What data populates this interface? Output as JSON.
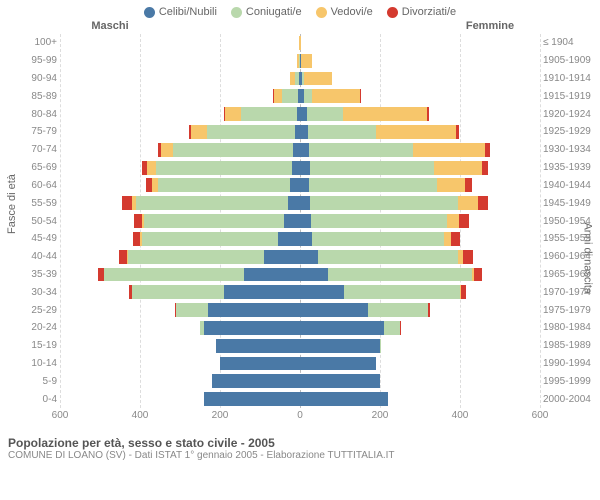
{
  "legend": [
    {
      "label": "Celibi/Nubili",
      "color": "#4a79a6"
    },
    {
      "label": "Coniugati/e",
      "color": "#b9d8ac"
    },
    {
      "label": "Vedovi/e",
      "color": "#f7c66b"
    },
    {
      "label": "Divorziati/e",
      "color": "#d43a2f"
    }
  ],
  "headers": {
    "left": "Maschi",
    "right": "Femmine"
  },
  "axis": {
    "left_title": "Fasce di età",
    "right_title": "Anni di nascita"
  },
  "x": {
    "max": 600,
    "ticks": [
      600,
      400,
      200,
      0,
      200,
      400,
      600
    ]
  },
  "colors": {
    "celibi": "#4a79a6",
    "coniugati": "#b9d8ac",
    "vedovi": "#f7c66b",
    "divorziati": "#d43a2f",
    "grid": "#dddddd",
    "center": "#bbbbbb",
    "bg": "#ffffff"
  },
  "footer": {
    "title": "Popolazione per età, sesso e stato civile - 2005",
    "subtitle": "COMUNE DI LOANO (SV) - Dati ISTAT 1° gennaio 2005 - Elaborazione TUTTITALIA.IT"
  },
  "rows": [
    {
      "age": "100+",
      "birth": "≤ 1904",
      "m": {
        "c": 0,
        "co": 0,
        "v": 2,
        "d": 0
      },
      "f": {
        "c": 0,
        "co": 0,
        "v": 3,
        "d": 0
      }
    },
    {
      "age": "95-99",
      "birth": "1905-1909",
      "m": {
        "c": 1,
        "co": 2,
        "v": 5,
        "d": 0
      },
      "f": {
        "c": 2,
        "co": 1,
        "v": 28,
        "d": 0
      }
    },
    {
      "age": "90-94",
      "birth": "1910-1914",
      "m": {
        "c": 2,
        "co": 10,
        "v": 12,
        "d": 0
      },
      "f": {
        "c": 6,
        "co": 5,
        "v": 70,
        "d": 0
      }
    },
    {
      "age": "85-89",
      "birth": "1915-1919",
      "m": {
        "c": 4,
        "co": 40,
        "v": 22,
        "d": 1
      },
      "f": {
        "c": 10,
        "co": 20,
        "v": 120,
        "d": 2
      }
    },
    {
      "age": "80-84",
      "birth": "1920-1924",
      "m": {
        "c": 8,
        "co": 140,
        "v": 40,
        "d": 3
      },
      "f": {
        "c": 18,
        "co": 90,
        "v": 210,
        "d": 5
      }
    },
    {
      "age": "75-79",
      "birth": "1925-1929",
      "m": {
        "c": 12,
        "co": 220,
        "v": 40,
        "d": 5
      },
      "f": {
        "c": 20,
        "co": 170,
        "v": 200,
        "d": 8
      }
    },
    {
      "age": "70-74",
      "birth": "1930-1934",
      "m": {
        "c": 18,
        "co": 300,
        "v": 30,
        "d": 8
      },
      "f": {
        "c": 22,
        "co": 260,
        "v": 180,
        "d": 12
      }
    },
    {
      "age": "65-69",
      "birth": "1935-1939",
      "m": {
        "c": 20,
        "co": 340,
        "v": 22,
        "d": 12
      },
      "f": {
        "c": 24,
        "co": 310,
        "v": 120,
        "d": 15
      }
    },
    {
      "age": "60-64",
      "birth": "1940-1944",
      "m": {
        "c": 25,
        "co": 330,
        "v": 15,
        "d": 15
      },
      "f": {
        "c": 22,
        "co": 320,
        "v": 70,
        "d": 18
      }
    },
    {
      "age": "55-59",
      "birth": "1945-1949",
      "m": {
        "c": 30,
        "co": 380,
        "v": 10,
        "d": 25
      },
      "f": {
        "c": 25,
        "co": 370,
        "v": 50,
        "d": 25
      }
    },
    {
      "age": "50-54",
      "birth": "1950-1954",
      "m": {
        "c": 40,
        "co": 350,
        "v": 6,
        "d": 20
      },
      "f": {
        "c": 28,
        "co": 340,
        "v": 30,
        "d": 25
      }
    },
    {
      "age": "45-49",
      "birth": "1955-1959",
      "m": {
        "c": 55,
        "co": 340,
        "v": 4,
        "d": 18
      },
      "f": {
        "c": 30,
        "co": 330,
        "v": 18,
        "d": 22
      }
    },
    {
      "age": "40-44",
      "birth": "1960-1964",
      "m": {
        "c": 90,
        "co": 340,
        "v": 2,
        "d": 20
      },
      "f": {
        "c": 45,
        "co": 350,
        "v": 12,
        "d": 25
      }
    },
    {
      "age": "35-39",
      "birth": "1965-1969",
      "m": {
        "c": 140,
        "co": 350,
        "v": 1,
        "d": 15
      },
      "f": {
        "c": 70,
        "co": 360,
        "v": 6,
        "d": 20
      }
    },
    {
      "age": "30-34",
      "birth": "1970-1974",
      "m": {
        "c": 190,
        "co": 230,
        "v": 0,
        "d": 8
      },
      "f": {
        "c": 110,
        "co": 290,
        "v": 3,
        "d": 12
      }
    },
    {
      "age": "25-29",
      "birth": "1975-1979",
      "m": {
        "c": 230,
        "co": 80,
        "v": 0,
        "d": 2
      },
      "f": {
        "c": 170,
        "co": 150,
        "v": 1,
        "d": 4
      }
    },
    {
      "age": "20-24",
      "birth": "1980-1984",
      "m": {
        "c": 240,
        "co": 10,
        "v": 0,
        "d": 0
      },
      "f": {
        "c": 210,
        "co": 40,
        "v": 0,
        "d": 1
      }
    },
    {
      "age": "15-19",
      "birth": "1985-1989",
      "m": {
        "c": 210,
        "co": 0,
        "v": 0,
        "d": 0
      },
      "f": {
        "c": 200,
        "co": 2,
        "v": 0,
        "d": 0
      }
    },
    {
      "age": "10-14",
      "birth": "1990-1994",
      "m": {
        "c": 200,
        "co": 0,
        "v": 0,
        "d": 0
      },
      "f": {
        "c": 190,
        "co": 0,
        "v": 0,
        "d": 0
      }
    },
    {
      "age": "5-9",
      "birth": "1995-1999",
      "m": {
        "c": 220,
        "co": 0,
        "v": 0,
        "d": 0
      },
      "f": {
        "c": 200,
        "co": 0,
        "v": 0,
        "d": 0
      }
    },
    {
      "age": "0-4",
      "birth": "2000-2004",
      "m": {
        "c": 240,
        "co": 0,
        "v": 0,
        "d": 0
      },
      "f": {
        "c": 220,
        "co": 0,
        "v": 0,
        "d": 0
      }
    }
  ]
}
